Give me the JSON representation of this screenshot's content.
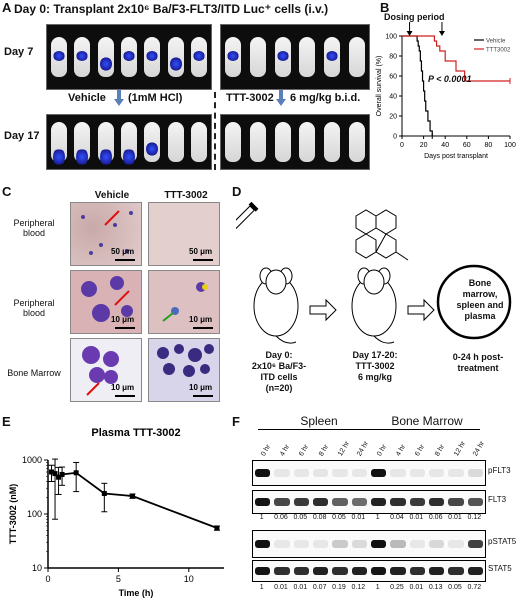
{
  "panelA": {
    "label": "A",
    "header": "Day 0:  Transplant 2x10⁶ Ba/F3-FLT3/ITD Luc⁺ cells (i.v.)",
    "day7": "Day 7",
    "day17": "Day 17",
    "vehicle": "Vehicle",
    "vehicle_dose": "(1mM HCl)",
    "ttt": "TTT-3002",
    "ttt_dose": "6 mg/kg b.i.d."
  },
  "panelB": {
    "label": "B",
    "dosing": "Dosing period",
    "pval": "P < 0.0001",
    "legend_vehicle": "Vehicle",
    "legend_ttt": "TTT3002"
  },
  "panelC": {
    "label": "C",
    "col_vehicle": "Vehicle",
    "col_ttt": "TTT-3002",
    "row1": "Peripheral blood",
    "row2": "Peripheral blood",
    "row3": "Bone Marrow",
    "scale1": "50 μm",
    "scale2": "10 μm"
  },
  "panelD": {
    "label": "D",
    "day0": "Day 0:",
    "day0_line2": "2x10⁶ Ba/F3-",
    "day0_line3": "ITD cells",
    "day0_line4": "(n=20)",
    "day17": "Day 17-20:",
    "day17_line2": "TTT-3002",
    "day17_line3": "6 mg/kg",
    "circle1": "Bone",
    "circle2": "marrow,",
    "circle3": "spleen and",
    "circle4": "plasma",
    "after1": "0-24 h post-",
    "after2": "treatment"
  },
  "panelE": {
    "label": "E"
  },
  "panelF": {
    "label": "F",
    "spleen": "Spleen",
    "marrow": "Bone Marrow",
    "times": [
      "0 hr",
      "4 hr",
      "6 hr",
      "8 hr",
      "12 hr",
      "24 hr"
    ],
    "pflt3": "pFLT3",
    "flt3": "FLT3",
    "pstat5": "pSTAT5",
    "stat5": "STAT5",
    "flt3_ratios": [
      "1",
      "0.06",
      "0.05",
      "0.08",
      "0.05",
      "0.01",
      "1",
      "0.04",
      "0.01",
      "0.06",
      "0.01",
      "0.12"
    ],
    "stat5_ratios": [
      "1",
      "0.01",
      "0.01",
      "0.07",
      "0.19",
      "0.12",
      "1",
      "0.25",
      "0.01",
      "0.13",
      "0.05",
      "0.72"
    ],
    "pflt3_levels": [
      1,
      0.06,
      0.05,
      0.08,
      0.05,
      0.01,
      1,
      0.04,
      0.01,
      0.06,
      0.01,
      0.12
    ],
    "pstat5_levels": [
      1,
      0.01,
      0.01,
      0.07,
      0.19,
      0.12,
      1,
      0.25,
      0.01,
      0.13,
      0.05,
      0.72
    ]
  },
  "chart_data": [
    {
      "type": "line",
      "title": "",
      "xlabel": "Days post transplant",
      "ylabel": "Overall survival (%)",
      "xlim": [
        0,
        100
      ],
      "ylim": [
        0,
        100
      ],
      "xticks": [
        "0",
        "20",
        "40",
        "60",
        "80",
        "100"
      ],
      "yticks": [
        "0",
        "20",
        "40",
        "60",
        "80",
        "100"
      ],
      "series": [
        {
          "name": "Vehicle",
          "color": "#000000",
          "x": [
            0,
            12,
            14,
            15,
            16,
            17,
            18,
            19,
            20,
            21,
            22,
            24,
            26,
            28
          ],
          "y": [
            100,
            100,
            95,
            90,
            85,
            75,
            65,
            55,
            45,
            35,
            25,
            15,
            5,
            0
          ]
        },
        {
          "name": "TTT3002",
          "color": "#d22020",
          "x": [
            0,
            28,
            30,
            32,
            35,
            40,
            50,
            58,
            65,
            100
          ],
          "y": [
            100,
            100,
            95,
            90,
            85,
            75,
            65,
            55,
            55,
            55
          ]
        }
      ]
    },
    {
      "type": "line",
      "title": "Plasma TTT-3002",
      "xlabel": "Time (h)",
      "ylabel": "TTT-3002 (nM)",
      "xlim": [
        0,
        12.5
      ],
      "ylim": [
        10,
        1000
      ],
      "log_y": true,
      "xticks": [
        "0",
        "5",
        "10"
      ],
      "yticks": [
        "10",
        "100",
        "1000"
      ],
      "series": [
        {
          "name": "",
          "color": "#000000",
          "x": [
            0.25,
            0.5,
            0.75,
            1,
            2,
            4,
            6,
            12
          ],
          "y": [
            600,
            560,
            480,
            540,
            580,
            240,
            215,
            55
          ],
          "err": [
            200,
            480,
            250,
            200,
            320,
            130,
            20,
            5
          ]
        }
      ]
    }
  ]
}
